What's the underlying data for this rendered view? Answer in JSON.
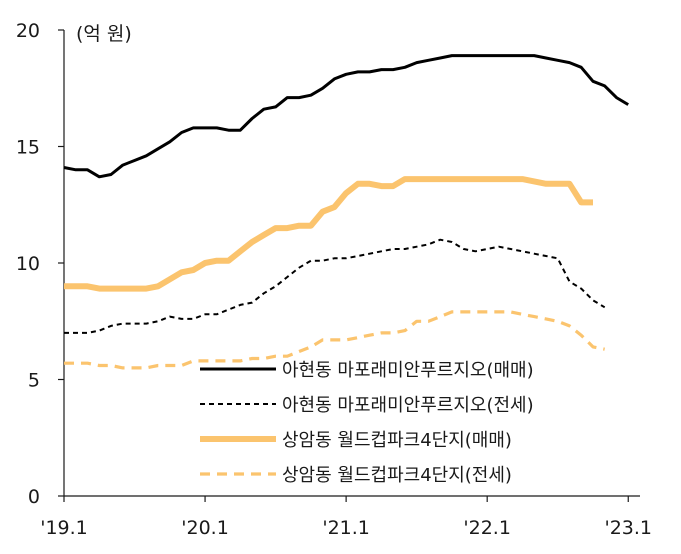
{
  "chart_data": {
    "type": "line",
    "title": "",
    "unit_label": "(억 원)",
    "xlabel": "",
    "ylabel": "",
    "ylim": [
      0,
      20
    ],
    "y_ticks": [
      0,
      5,
      10,
      15,
      20
    ],
    "x_ticks": [
      {
        "t": 0,
        "label": "'19.1"
      },
      {
        "t": 12,
        "label": "'20.1"
      },
      {
        "t": 24,
        "label": "'21.1"
      },
      {
        "t": 36,
        "label": "'22.1"
      },
      {
        "t": 48,
        "label": "'23.1"
      }
    ],
    "x_range": [
      0,
      49
    ],
    "grid": false,
    "legend_position": "bottom-right",
    "series": [
      {
        "name": "아현동 마포래미안푸르지오(매매)",
        "color": "#000000",
        "style": "solid",
        "values": [
          14.1,
          14.0,
          14.0,
          13.7,
          13.8,
          14.2,
          14.4,
          14.6,
          14.9,
          15.2,
          15.6,
          15.8,
          15.8,
          15.8,
          15.7,
          15.7,
          16.2,
          16.6,
          16.7,
          17.1,
          17.1,
          17.2,
          17.5,
          17.9,
          18.1,
          18.2,
          18.2,
          18.3,
          18.3,
          18.4,
          18.6,
          18.7,
          18.8,
          18.9,
          18.9,
          18.9,
          18.9,
          18.9,
          18.9,
          18.9,
          18.9,
          18.8,
          18.7,
          18.6,
          18.4,
          17.8,
          17.6,
          17.1,
          16.8
        ]
      },
      {
        "name": "아현동 마포래미안푸르지오(전세)",
        "color": "#000000",
        "style": "dashed",
        "values": [
          7.0,
          7.0,
          7.0,
          7.1,
          7.3,
          7.4,
          7.4,
          7.4,
          7.5,
          7.7,
          7.6,
          7.6,
          7.8,
          7.8,
          8.0,
          8.2,
          8.3,
          8.7,
          9.0,
          9.4,
          9.8,
          10.1,
          10.1,
          10.2,
          10.2,
          10.3,
          10.4,
          10.5,
          10.6,
          10.6,
          10.7,
          10.8,
          11.0,
          10.9,
          10.6,
          10.5,
          10.6,
          10.7,
          10.6,
          10.5,
          10.4,
          10.3,
          10.2,
          9.2,
          8.9,
          8.4,
          8.1
        ]
      },
      {
        "name": "상암동 월드컵파크4단지(매매)",
        "color": "#fbc46e",
        "style": "solid",
        "values": [
          9.0,
          9.0,
          9.0,
          8.9,
          8.9,
          8.9,
          8.9,
          8.9,
          9.0,
          9.3,
          9.6,
          9.7,
          10.0,
          10.1,
          10.1,
          10.5,
          10.9,
          11.2,
          11.5,
          11.5,
          11.6,
          11.6,
          12.2,
          12.4,
          13.0,
          13.4,
          13.4,
          13.3,
          13.3,
          13.6,
          13.6,
          13.6,
          13.6,
          13.6,
          13.6,
          13.6,
          13.6,
          13.6,
          13.6,
          13.6,
          13.5,
          13.4,
          13.4,
          13.4,
          12.6,
          12.6
        ]
      },
      {
        "name": "상암동 월드컵파크4단지(전세)",
        "color": "#fbc46e",
        "style": "dashed",
        "values": [
          5.7,
          5.7,
          5.7,
          5.6,
          5.6,
          5.5,
          5.5,
          5.5,
          5.6,
          5.6,
          5.6,
          5.8,
          5.8,
          5.8,
          5.8,
          5.8,
          5.9,
          5.9,
          6.0,
          6.0,
          6.2,
          6.4,
          6.7,
          6.7,
          6.7,
          6.8,
          6.9,
          7.0,
          7.0,
          7.1,
          7.5,
          7.5,
          7.7,
          7.9,
          7.9,
          7.9,
          7.9,
          7.9,
          7.9,
          7.8,
          7.7,
          7.6,
          7.5,
          7.3,
          6.9,
          6.4,
          6.3
        ]
      }
    ]
  }
}
